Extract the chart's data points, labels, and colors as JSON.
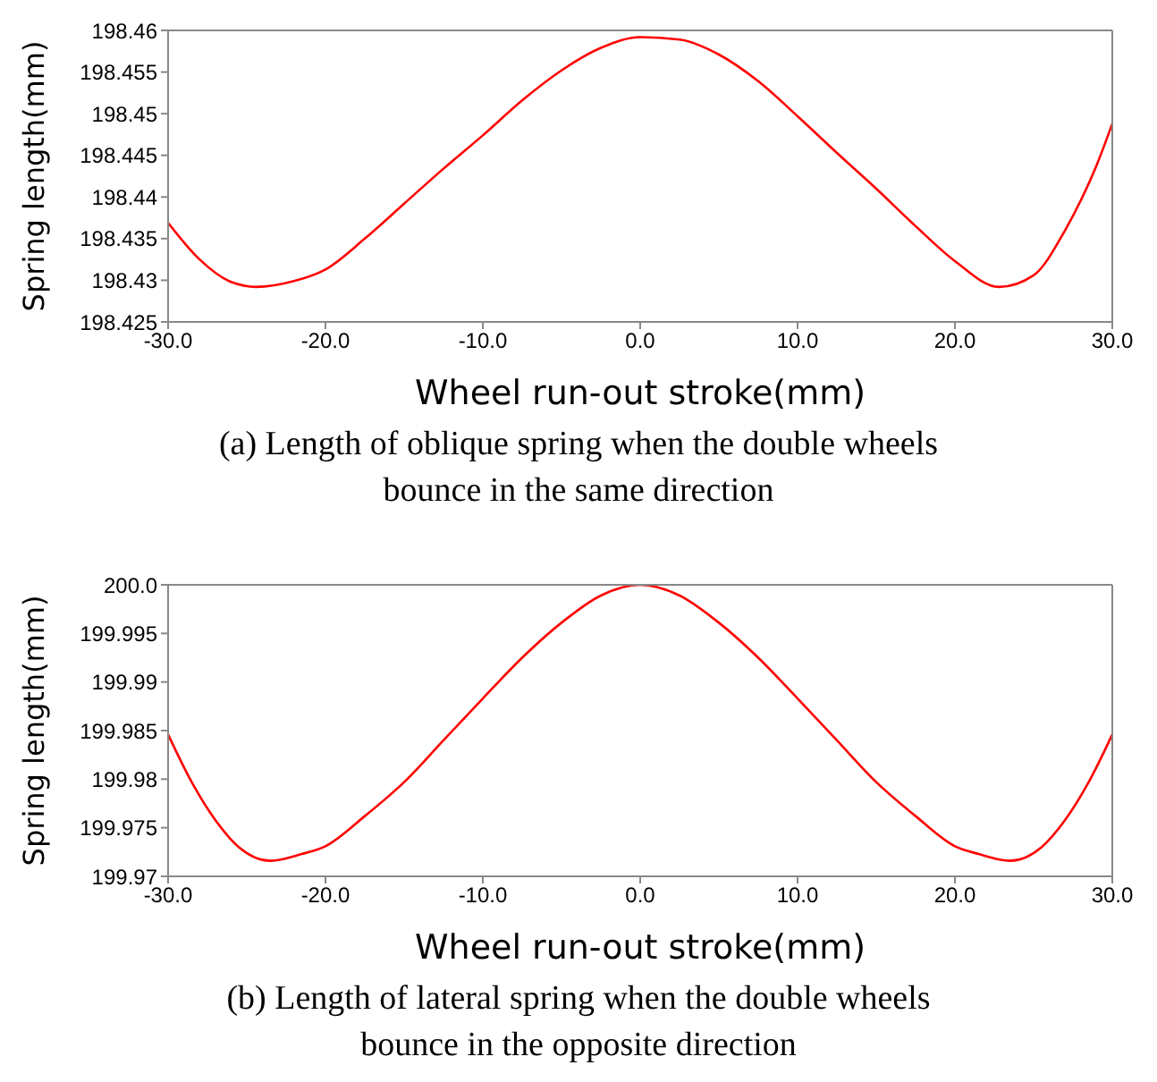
{
  "chart_data": [
    {
      "type": "line",
      "xlabel": "Wheel run-out stroke(mm)",
      "ylabel": "Spring length(mm)",
      "annotations": [
        "(a) Length of oblique spring when the double wheels bounce in the same direction"
      ],
      "series": [
        {
          "color": "#ff0000",
          "x": [
            -30,
            -28,
            -26,
            -24.4,
            -22,
            -20,
            -17.5,
            -15,
            -12.5,
            -10,
            -7.5,
            -5,
            -2.5,
            0,
            2.5,
            5,
            7.5,
            10,
            12.5,
            15,
            17.5,
            20,
            22.8,
            25,
            27,
            28,
            29,
            30
          ],
          "values": [
            198.4369,
            198.4325,
            198.4298,
            198.4292,
            198.4299,
            198.4313,
            198.435,
            198.4392,
            198.4434,
            198.4474,
            198.4516,
            198.4552,
            198.4579,
            198.4592,
            198.4589,
            198.4571,
            198.4539,
            198.4497,
            198.4453,
            198.441,
            198.4365,
            198.4323,
            198.4292,
            198.4306,
            198.436,
            198.4396,
            198.4438,
            198.4488
          ]
        }
      ],
      "xlim": [
        -30,
        30
      ],
      "xticks": [
        {
          "value": -30,
          "label": "-30.0"
        },
        {
          "value": -20,
          "label": "-20.0"
        },
        {
          "value": -10,
          "label": "-10.0"
        },
        {
          "value": 0,
          "label": "0.0"
        },
        {
          "value": 10,
          "label": "10.0"
        },
        {
          "value": 20,
          "label": "20.0"
        },
        {
          "value": 30,
          "label": "30.0"
        }
      ],
      "ylim": [
        198.425,
        198.46
      ],
      "yticks": [
        198.425,
        198.43,
        198.435,
        198.44,
        198.445,
        198.45,
        198.455,
        198.46
      ],
      "grid": false,
      "marker": "none",
      "line_style": "solid"
    },
    {
      "type": "line",
      "xlabel": "Wheel run-out stroke(mm)",
      "ylabel": "Spring length(mm)",
      "annotations": [
        "(b) Length of lateral spring when the double wheels bounce in the opposite direction"
      ],
      "series": [
        {
          "color": "#ff0000",
          "x": [
            -30,
            -28.5,
            -27,
            -25.5,
            -23.5,
            -21.5,
            -20,
            -17.5,
            -15,
            -12.5,
            -10,
            -7.5,
            -5,
            -2.5,
            0,
            2.5,
            5,
            7.5,
            10,
            12.5,
            15,
            17.5,
            20,
            21.5,
            23.5,
            25.5,
            27,
            28.5,
            30
          ],
          "values": [
            199.9846,
            199.9797,
            199.9758,
            199.973,
            199.9716,
            199.9723,
            199.9731,
            199.9762,
            199.9797,
            199.984,
            199.9883,
            199.9925,
            199.9961,
            199.9989,
            200.0,
            199.9989,
            199.9961,
            199.9925,
            199.9883,
            199.984,
            199.9797,
            199.9762,
            199.9731,
            199.9723,
            199.9716,
            199.973,
            199.9758,
            199.9797,
            199.9846
          ]
        }
      ],
      "xlim": [
        -30,
        30
      ],
      "xticks": [
        {
          "value": -30,
          "label": "-30.0"
        },
        {
          "value": -20,
          "label": "-20.0"
        },
        {
          "value": -10,
          "label": "-10.0"
        },
        {
          "value": 0,
          "label": "0.0"
        },
        {
          "value": 10,
          "label": "10.0"
        },
        {
          "value": 20,
          "label": "20.0"
        },
        {
          "value": 30,
          "label": "30.0"
        }
      ],
      "ylim": [
        199.97,
        200.0
      ],
      "yticks": [
        199.97,
        199.975,
        199.98,
        199.985,
        199.99,
        199.995,
        {
          "value": 200.0,
          "label": "200.0"
        }
      ],
      "grid": false,
      "marker": "none",
      "line_style": "solid"
    }
  ]
}
